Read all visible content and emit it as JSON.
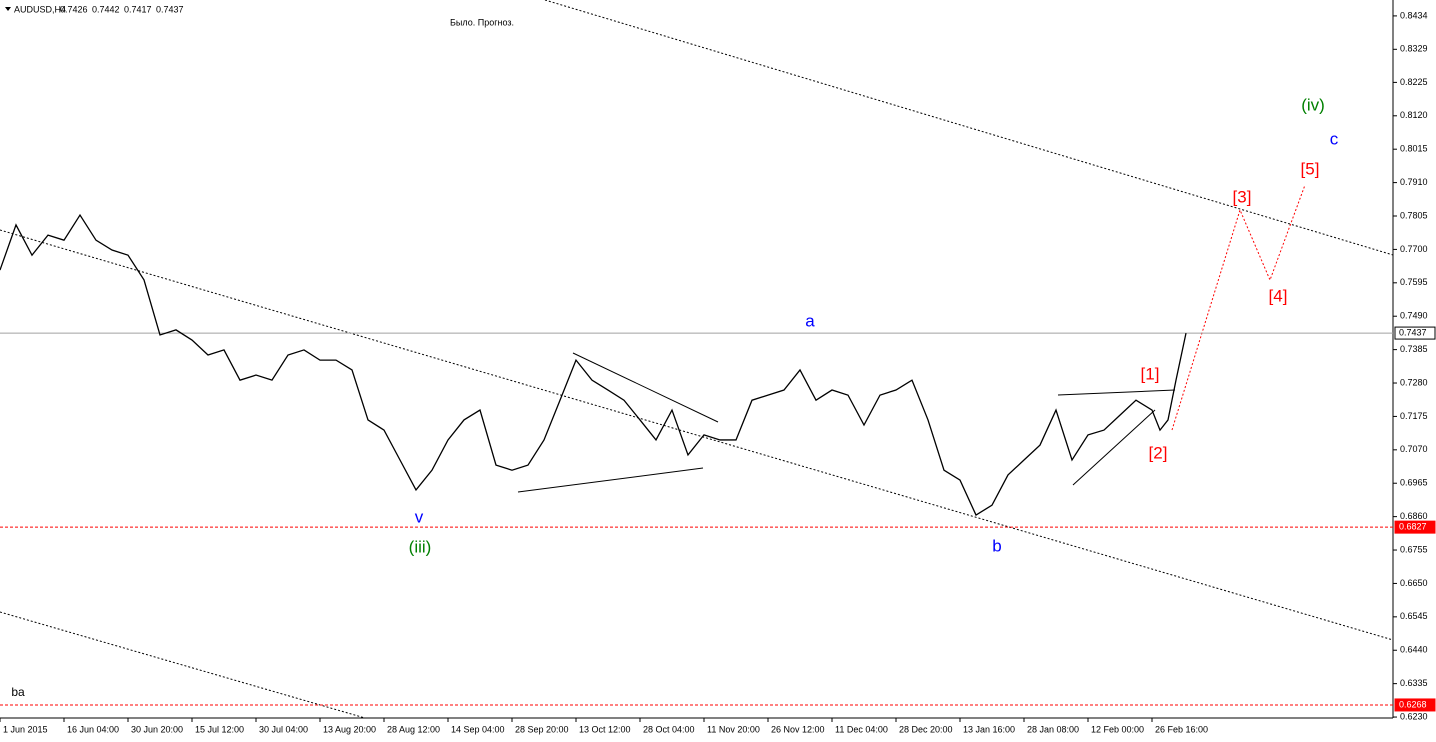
{
  "chart_data": {
    "type": "line",
    "symbol": "AUDUSD,H4",
    "ohlc": [
      0.7426,
      0.7442,
      0.7417,
      0.7437
    ],
    "subtitle": "Было. Прогноз.",
    "x": [
      0,
      16,
      32,
      48,
      64,
      80,
      96,
      112,
      128,
      144,
      160,
      176,
      192,
      208,
      224,
      240,
      256,
      272,
      288,
      304,
      320,
      336,
      352,
      368,
      384,
      400,
      416,
      432,
      448,
      464,
      480,
      496,
      512,
      528,
      544,
      560,
      576,
      592,
      608,
      624,
      640,
      656,
      672,
      688,
      704,
      720,
      736,
      752,
      768,
      784,
      800,
      816,
      832,
      848,
      864,
      880,
      896,
      912,
      928,
      944,
      960,
      976,
      992,
      1008,
      1024,
      1040,
      1056,
      1072,
      1088,
      1104,
      1120,
      1136,
      1152,
      1160,
      1168,
      1176,
      1186
    ],
    "values": [
      0.7635,
      0.7777,
      0.7682,
      0.7745,
      0.7729,
      0.7808,
      0.7729,
      0.7698,
      0.7682,
      0.7604,
      0.7431,
      0.7447,
      0.7415,
      0.7368,
      0.7384,
      0.7289,
      0.7305,
      0.7289,
      0.7368,
      0.7384,
      0.7352,
      0.7352,
      0.7321,
      0.7164,
      0.7132,
      0.7038,
      0.6944,
      0.7006,
      0.7101,
      0.7164,
      0.7195,
      0.7022,
      0.7006,
      0.7022,
      0.7101,
      0.7226,
      0.7352,
      0.7289,
      0.7258,
      0.7226,
      0.7164,
      0.7101,
      0.7195,
      0.7054,
      0.7117,
      0.7101,
      0.7101,
      0.7226,
      0.7242,
      0.7258,
      0.7321,
      0.7226,
      0.7258,
      0.7242,
      0.7148,
      0.7242,
      0.7258,
      0.7289,
      0.7164,
      0.7006,
      0.6975,
      0.6865,
      0.6896,
      0.6991,
      0.7038,
      0.7085,
      0.7195,
      0.7038,
      0.7117,
      0.7132,
      0.7179,
      0.7226,
      0.7195,
      0.7132,
      0.7164,
      0.7289,
      0.7437
    ],
    "color": "#000000",
    "xlim": [
      0,
      1393
    ],
    "xticks": [
      {
        "value": 0,
        "label": "1 Jun 2015"
      },
      {
        "value": 64,
        "label": "16 Jun 04:00"
      },
      {
        "value": 128,
        "label": "30 Jun 20:00"
      },
      {
        "value": 192,
        "label": "15 Jul 12:00"
      },
      {
        "value": 256,
        "label": "30 Jul 04:00"
      },
      {
        "value": 320,
        "label": "13 Aug 20:00"
      },
      {
        "value": 384,
        "label": "28 Aug 12:00"
      },
      {
        "value": 448,
        "label": "14 Sep 04:00"
      },
      {
        "value": 512,
        "label": "28 Sep 20:00"
      },
      {
        "value": 576,
        "label": "13 Oct 12:00"
      },
      {
        "value": 640,
        "label": "28 Oct 04:00"
      },
      {
        "value": 704,
        "label": "11 Nov 20:00"
      },
      {
        "value": 768,
        "label": "26 Nov 12:00"
      },
      {
        "value": 832,
        "label": "11 Dec 04:00"
      },
      {
        "value": 896,
        "label": "28 Dec 20:00"
      },
      {
        "value": 960,
        "label": "13 Jan 16:00"
      },
      {
        "value": 1024,
        "label": "28 Jan 08:00"
      },
      {
        "value": 1088,
        "label": "12 Feb 00:00"
      },
      {
        "value": 1152,
        "label": "26 Feb 16:00"
      }
    ],
    "ylim": [
      0.6227,
      0.8484
    ],
    "yticks": [
      0.8434,
      0.8329,
      0.8225,
      {
        "value": 0.812,
        "label": "0.8120"
      },
      0.8015,
      {
        "value": 0.791,
        "label": "0.7910"
      },
      0.7805,
      {
        "value": 0.77,
        "label": "0.7700"
      },
      0.7595,
      {
        "value": 0.749,
        "label": "0.7490"
      },
      0.7385,
      {
        "value": 0.728,
        "label": "0.7280"
      },
      0.7175,
      {
        "value": 0.707,
        "label": "0.7070"
      },
      0.6965,
      {
        "value": 0.686,
        "label": "0.6860"
      },
      0.6755,
      {
        "value": 0.665,
        "label": "0.6650"
      },
      0.6545,
      {
        "value": 0.644,
        "label": "0.6440"
      },
      0.6335,
      {
        "value": 0.623,
        "label": "0.6230"
      }
    ],
    "levels": [
      {
        "value": 0.7437,
        "color": "#a0a0a0"
      },
      {
        "value": 0.6827,
        "color": "#ff0000"
      },
      {
        "value": 0.6268,
        "color": "#ff0000"
      }
    ],
    "annotations": [
      {
        "text": "a",
        "color": "#0000ff"
      },
      {
        "text": "v",
        "color": "#0000ff"
      },
      {
        "text": "(iii)",
        "color": "#008000"
      },
      {
        "text": "b",
        "color": "#0000ff"
      },
      {
        "text": "[1]",
        "color": "#ff0000"
      },
      {
        "text": "[2]",
        "color": "#ff0000"
      },
      {
        "text": "[3]",
        "color": "#ff0000"
      },
      {
        "text": "[4]",
        "color": "#ff0000"
      },
      {
        "text": "[5]",
        "color": "#ff0000"
      },
      {
        "text": "c",
        "color": "#0000ff"
      },
      {
        "text": "(iv)",
        "color": "#008000"
      },
      {
        "text": "ba",
        "color": "#000000"
      }
    ]
  }
}
